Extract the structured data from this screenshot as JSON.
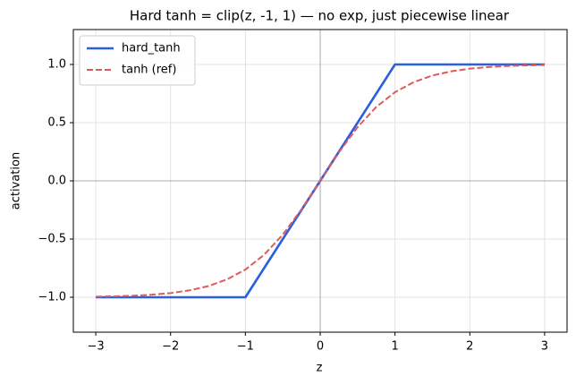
{
  "chart_data": {
    "type": "line",
    "title": "Hard tanh = clip(z, -1, 1) — no exp, just piecewise linear",
    "xlabel": "z",
    "ylabel": "activation",
    "x": [
      -3,
      -2.75,
      -2.5,
      -2.25,
      -2,
      -1.75,
      -1.5,
      -1.25,
      -1,
      -0.75,
      -0.5,
      -0.25,
      0,
      0.25,
      0.5,
      0.75,
      1,
      1.25,
      1.5,
      1.75,
      2,
      2.25,
      2.5,
      2.75,
      3
    ],
    "series": [
      {
        "name": "hard_tanh",
        "color": "#2a5fdf",
        "style": "solid",
        "values": [
          -1,
          -1,
          -1,
          -1,
          -1,
          -1,
          -1,
          -1,
          -1,
          -0.75,
          -0.5,
          -0.25,
          0,
          0.25,
          0.5,
          0.75,
          1,
          1,
          1,
          1,
          1,
          1,
          1,
          1,
          1
        ]
      },
      {
        "name": "tanh (ref)",
        "color": "#e05a5a",
        "style": "dashed",
        "values": [
          -0.995,
          -0.992,
          -0.987,
          -0.978,
          -0.964,
          -0.941,
          -0.905,
          -0.848,
          -0.762,
          -0.635,
          -0.462,
          -0.245,
          0,
          0.245,
          0.462,
          0.635,
          0.762,
          0.848,
          0.905,
          0.941,
          0.964,
          0.978,
          0.987,
          0.992,
          0.995
        ]
      }
    ],
    "xlim": [
      -3.3,
      3.3
    ],
    "ylim": [
      -1.3,
      1.3
    ],
    "xticks": [
      {
        "value": -3,
        "label": "−3"
      },
      {
        "value": -2,
        "label": "−2"
      },
      {
        "value": -1,
        "label": "−1"
      },
      0,
      1,
      2,
      3
    ],
    "yticks": [
      {
        "value": -1,
        "label": "−1.0"
      },
      {
        "value": -0.5,
        "label": "−0.5"
      },
      {
        "value": 0,
        "label": "0.0"
      },
      {
        "value": 0.5,
        "label": "0.5"
      },
      {
        "value": 1,
        "label": "1.0"
      }
    ],
    "grid": true,
    "zero_lines": true,
    "legend": "upper left"
  }
}
